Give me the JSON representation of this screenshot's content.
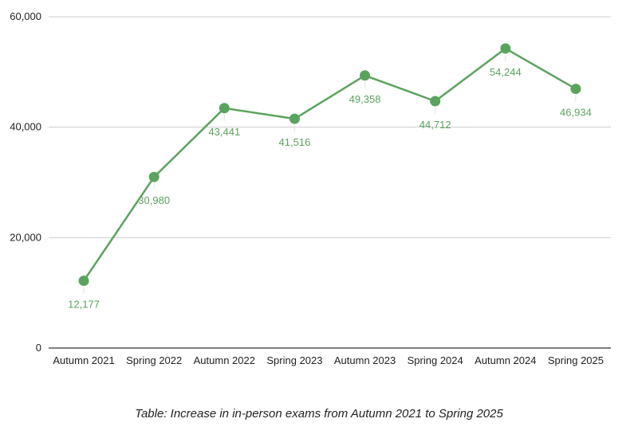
{
  "chart_data": {
    "type": "line",
    "title": "",
    "xlabel": "",
    "ylabel": "",
    "categories": [
      "Autumn 2021",
      "Spring 2022",
      "Autumn 2022",
      "Spring 2023",
      "Autumn 2023",
      "Spring 2024",
      "Autumn 2024",
      "Spring 2025"
    ],
    "series": [
      {
        "values": [
          12177,
          30980,
          43441,
          41516,
          49358,
          44712,
          54244,
          46934
        ],
        "data_labels": [
          "12,177",
          "30,980",
          "43,441",
          "41,516",
          "49,358",
          "44,712",
          "54,244",
          "46,934"
        ]
      }
    ],
    "ylim": [
      0,
      60000
    ],
    "yticks": [
      0,
      20000,
      40000,
      60000
    ],
    "ytick_labels": [
      "0",
      "20,000",
      "40,000",
      "60,000"
    ],
    "grid": true,
    "legend": "none",
    "colors": {
      "series": "#5aa35d",
      "grid": "#cccccc",
      "axis": "#333333"
    }
  },
  "caption": "Table: Increase in in-person exams from Autumn 2021 to Spring 2025"
}
